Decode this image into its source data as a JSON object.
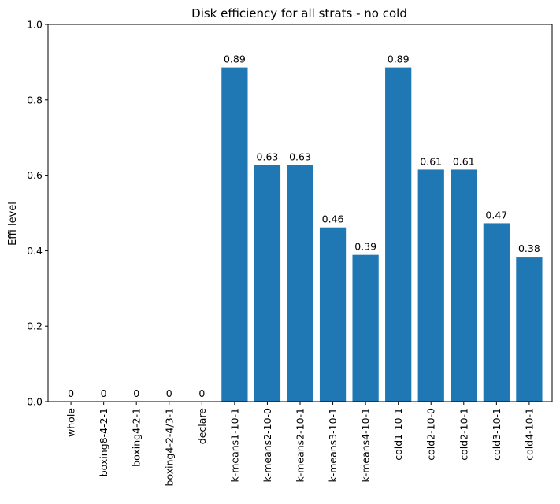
{
  "chart_data": {
    "type": "bar",
    "title": "Disk efficiency for all strats - no cold",
    "xlabel": "",
    "ylabel": "Effi level",
    "ylim": [
      0,
      1.0
    ],
    "yticks": [
      "0.0",
      "0.2",
      "0.4",
      "0.6",
      "0.8",
      "1.0"
    ],
    "yticks_values": [
      0,
      0.2,
      0.4,
      0.6,
      0.8,
      1.0
    ],
    "grid": false,
    "bar_color": "#1f77b4",
    "categories": [
      "whole",
      "boxing8-4-2-1",
      "boxing4-2-1",
      "boxing4-2-4/3-1",
      "declare",
      "k-means1-10-1",
      "k-means2-10-0",
      "k-means2-10-1",
      "k-means3-10-1",
      "k-means4-10-1",
      "cold1-10-1",
      "cold2-10-0",
      "cold2-10-1",
      "cold3-10-1",
      "cold4-10-1"
    ],
    "values": [
      0,
      0,
      0,
      0,
      0,
      0.886,
      0.627,
      0.627,
      0.462,
      0.389,
      0.886,
      0.615,
      0.615,
      0.473,
      0.384
    ],
    "value_labels": [
      "0",
      "0",
      "0",
      "0",
      "0",
      "0.89",
      "0.63",
      "0.63",
      "0.46",
      "0.39",
      "0.89",
      "0.61",
      "0.61",
      "0.47",
      "0.38"
    ]
  }
}
